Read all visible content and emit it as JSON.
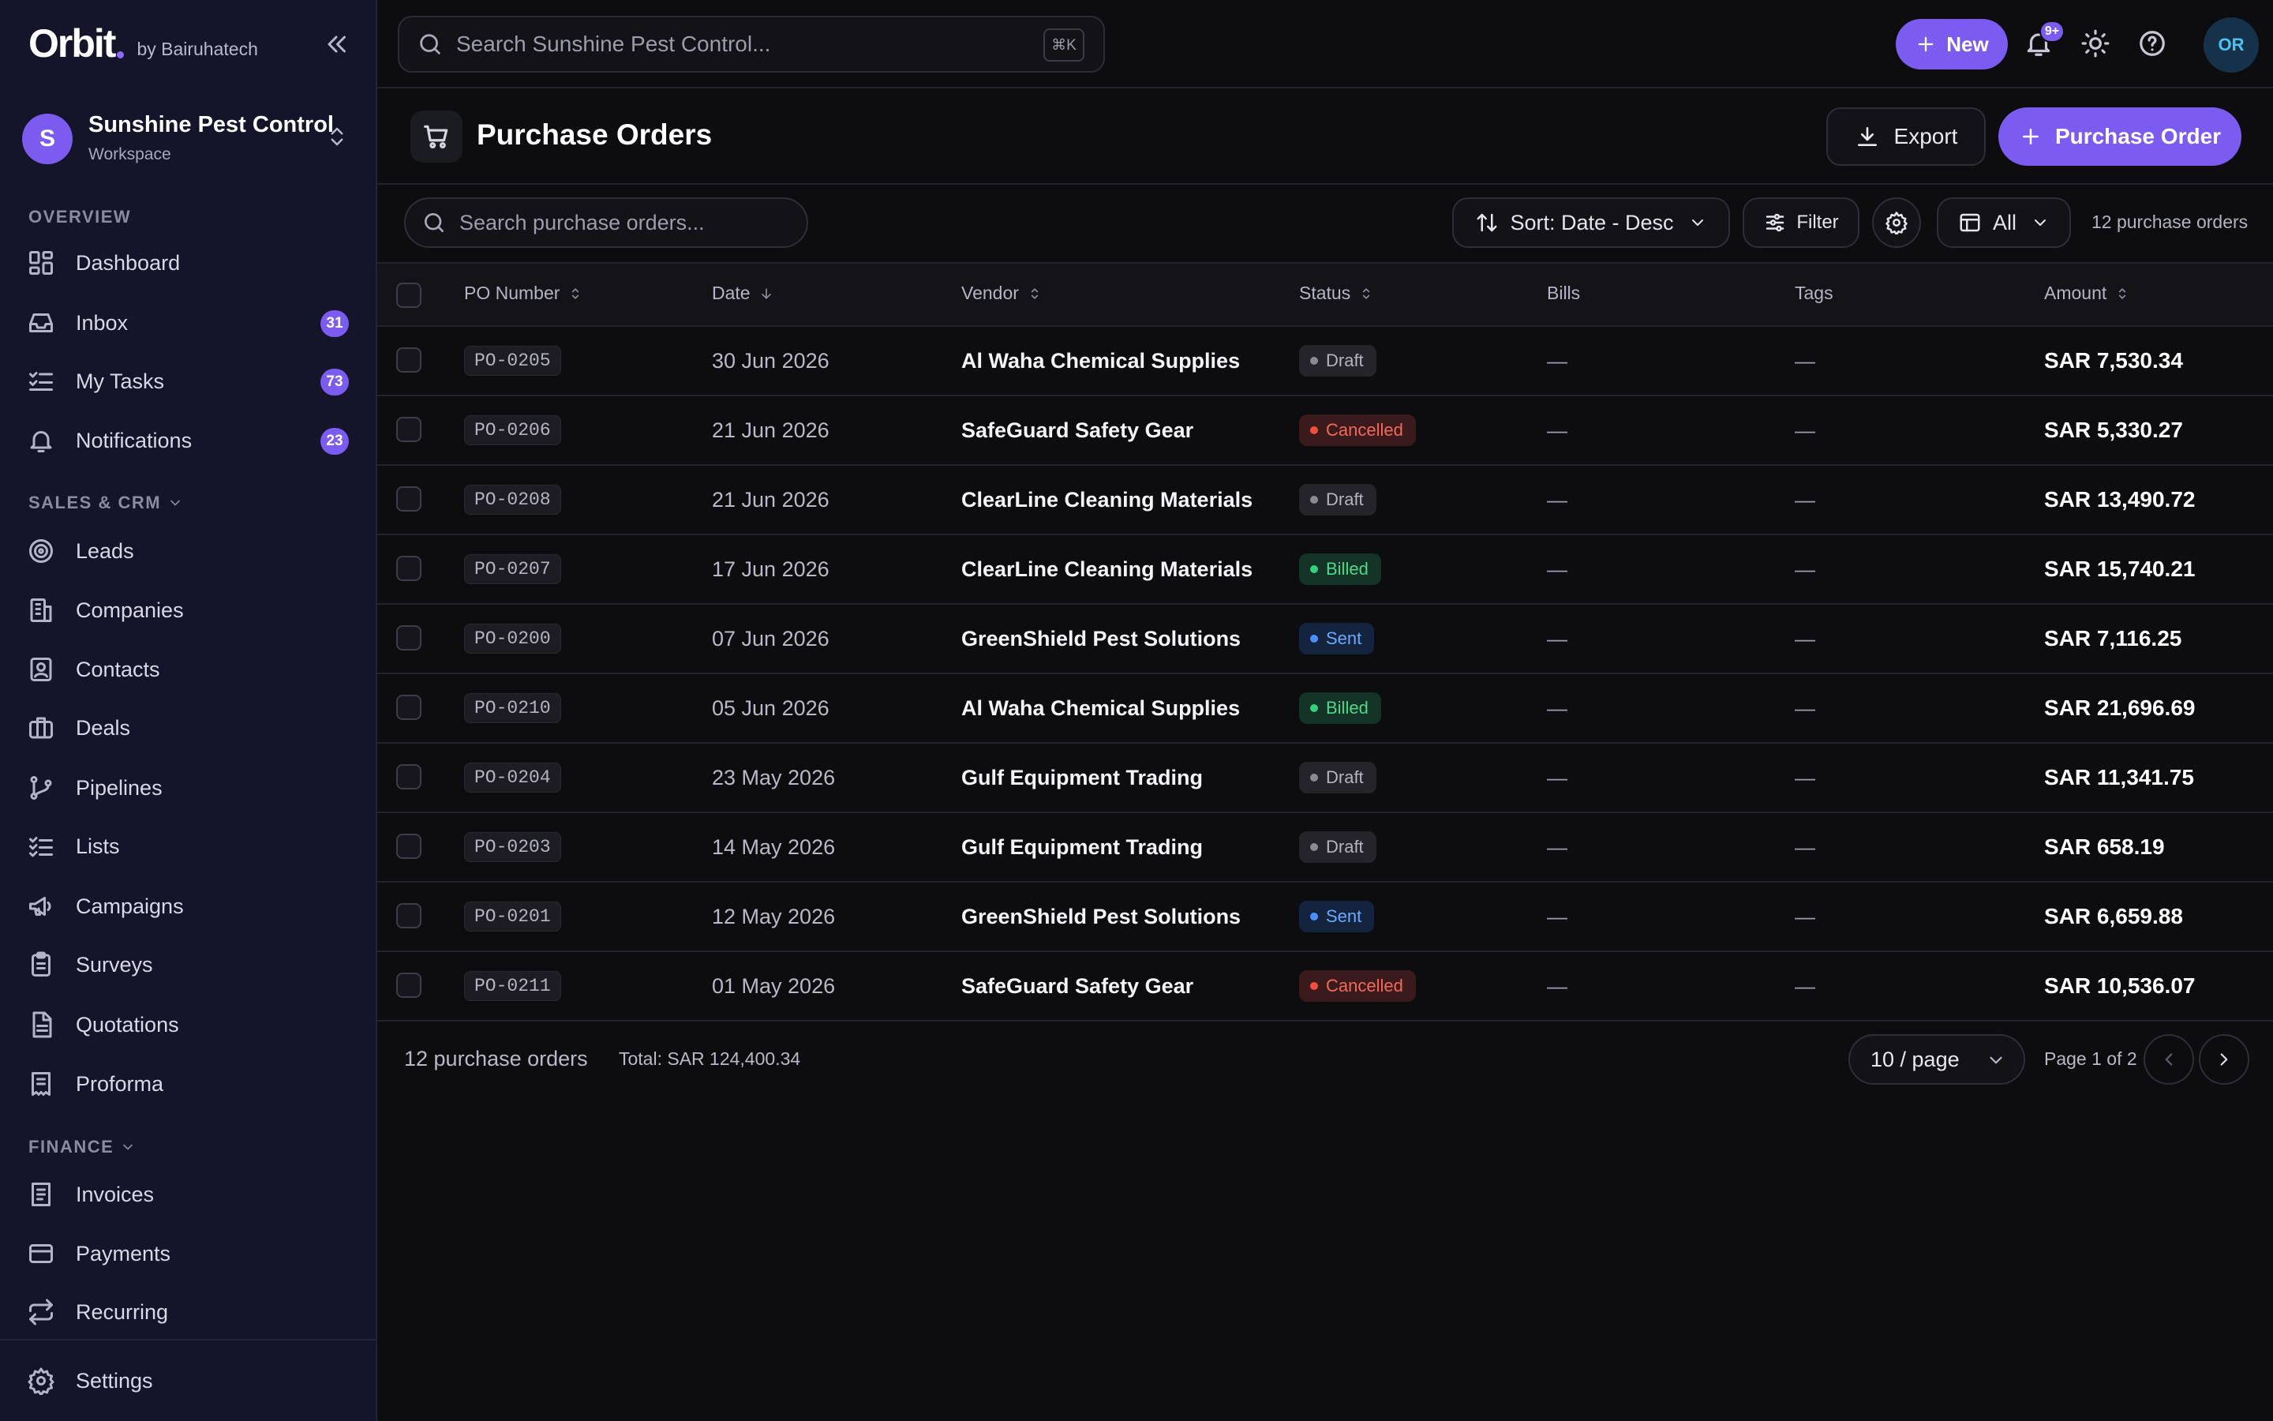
{
  "app": {
    "logo_text": "Orbit",
    "byline": "by Bairuhatech",
    "workspace_name": "Sunshine Pest Control",
    "workspace_type": "Workspace",
    "workspace_initial": "S"
  },
  "sidebar": {
    "sections": {
      "overview": "OVERVIEW",
      "sales": "SALES & CRM",
      "finance": "FINANCE"
    },
    "items": [
      {
        "label": "Dashboard",
        "icon": "dashboard-icon"
      },
      {
        "label": "Inbox",
        "icon": "inbox-icon",
        "badge": "31"
      },
      {
        "label": "My Tasks",
        "icon": "tasks-icon",
        "badge": "73"
      },
      {
        "label": "Notifications",
        "icon": "bell-icon",
        "badge": "23"
      },
      {
        "label": "Leads",
        "icon": "target-icon"
      },
      {
        "label": "Companies",
        "icon": "building-icon"
      },
      {
        "label": "Contacts",
        "icon": "contact-icon"
      },
      {
        "label": "Deals",
        "icon": "briefcase-icon"
      },
      {
        "label": "Pipelines",
        "icon": "pipeline-icon"
      },
      {
        "label": "Lists",
        "icon": "list-icon"
      },
      {
        "label": "Campaigns",
        "icon": "megaphone-icon"
      },
      {
        "label": "Surveys",
        "icon": "clipboard-icon"
      },
      {
        "label": "Quotations",
        "icon": "document-icon"
      },
      {
        "label": "Proforma",
        "icon": "receipt-icon"
      },
      {
        "label": "Invoices",
        "icon": "invoice-icon"
      },
      {
        "label": "Payments",
        "icon": "card-icon"
      },
      {
        "label": "Recurring",
        "icon": "repeat-icon"
      }
    ],
    "settings": "Settings"
  },
  "topbar": {
    "search_placeholder": "Search Sunshine Pest Control...",
    "shortcut": "⌘K",
    "new_label": "New",
    "notif_badge": "9+",
    "user_initials": "OR"
  },
  "page": {
    "title": "Purchase Orders",
    "export_label": "Export",
    "create_label": "Purchase Order"
  },
  "toolbar": {
    "search_placeholder": "Search purchase orders...",
    "sort_label": "Sort: Date - Desc",
    "filter_label": "Filter",
    "view_label": "All",
    "count_label": "12 purchase orders"
  },
  "table": {
    "columns": [
      "PO Number",
      "Date",
      "Vendor",
      "Status",
      "Bills",
      "Tags",
      "Amount"
    ],
    "rows": [
      {
        "po": "PO-0205",
        "date": "30 Jun 2026",
        "vendor": "Al Waha Chemical Supplies",
        "status": "Draft",
        "bills": "—",
        "tags": "—",
        "amount": "SAR 7,530.34"
      },
      {
        "po": "PO-0206",
        "date": "21 Jun 2026",
        "vendor": "SafeGuard Safety Gear",
        "status": "Cancelled",
        "bills": "—",
        "tags": "—",
        "amount": "SAR 5,330.27"
      },
      {
        "po": "PO-0208",
        "date": "21 Jun 2026",
        "vendor": "ClearLine Cleaning Materials",
        "status": "Draft",
        "bills": "—",
        "tags": "—",
        "amount": "SAR 13,490.72"
      },
      {
        "po": "PO-0207",
        "date": "17 Jun 2026",
        "vendor": "ClearLine Cleaning Materials",
        "status": "Billed",
        "bills": "—",
        "tags": "—",
        "amount": "SAR 15,740.21"
      },
      {
        "po": "PO-0200",
        "date": "07 Jun 2026",
        "vendor": "GreenShield Pest Solutions",
        "status": "Sent",
        "bills": "—",
        "tags": "—",
        "amount": "SAR 7,116.25"
      },
      {
        "po": "PO-0210",
        "date": "05 Jun 2026",
        "vendor": "Al Waha Chemical Supplies",
        "status": "Billed",
        "bills": "—",
        "tags": "—",
        "amount": "SAR 21,696.69"
      },
      {
        "po": "PO-0204",
        "date": "23 May 2026",
        "vendor": "Gulf Equipment Trading",
        "status": "Draft",
        "bills": "—",
        "tags": "—",
        "amount": "SAR 11,341.75"
      },
      {
        "po": "PO-0203",
        "date": "14 May 2026",
        "vendor": "Gulf Equipment Trading",
        "status": "Draft",
        "bills": "—",
        "tags": "—",
        "amount": "SAR 658.19"
      },
      {
        "po": "PO-0201",
        "date": "12 May 2026",
        "vendor": "GreenShield Pest Solutions",
        "status": "Sent",
        "bills": "—",
        "tags": "—",
        "amount": "SAR 6,659.88"
      },
      {
        "po": "PO-0211",
        "date": "01 May 2026",
        "vendor": "SafeGuard Safety Gear",
        "status": "Cancelled",
        "bills": "—",
        "tags": "—",
        "amount": "SAR 10,536.07"
      }
    ],
    "status_colors": {
      "Draft": {
        "text": "#b4b4c0",
        "bg": "#24242a",
        "dot": "#8a8a96"
      },
      "Cancelled": {
        "text": "#f26a5a",
        "bg": "#3a1a1a",
        "dot": "#f0503e"
      },
      "Billed": {
        "text": "#4cd98b",
        "bg": "#123326",
        "dot": "#34d27a"
      },
      "Sent": {
        "text": "#6aa9ff",
        "bg": "#14243f",
        "dot": "#4a90ff"
      }
    }
  },
  "footer": {
    "count": "12 purchase orders",
    "total": "Total: SAR 124,400.34",
    "page_size": "10 / page",
    "page_info": "Page 1 of 2"
  },
  "colors": {
    "accent": "#7c5cf0",
    "background": "#0d0d10",
    "sidebar": "#14142a"
  }
}
